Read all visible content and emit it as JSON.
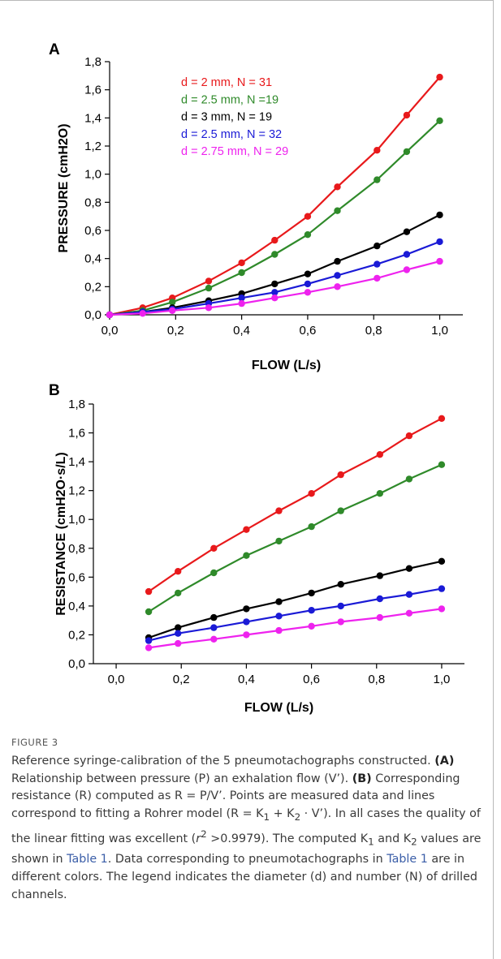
{
  "chart_data": [
    {
      "panel": "A",
      "type": "line",
      "xlabel": "FLOW (L/s)",
      "ylabel": "PRESSURE (cmH2O)",
      "xlim": [
        0.0,
        1.07
      ],
      "ylim": [
        0.0,
        1.8
      ],
      "xticks": [
        "0,0",
        "0,2",
        "0,4",
        "0,6",
        "0,8",
        "1,0"
      ],
      "yticks": [
        "0,0",
        "0,2",
        "0,4",
        "0,6",
        "0,8",
        "1,0",
        "1,2",
        "1,4",
        "1,6",
        "1,8"
      ],
      "x": [
        0.0,
        0.1,
        0.19,
        0.3,
        0.4,
        0.5,
        0.6,
        0.69,
        0.81,
        0.9,
        1.0
      ],
      "legend_position": "top-left",
      "series": [
        {
          "name": "d = 2 mm, N = 31",
          "color": "#e8191b",
          "values": [
            0.0,
            0.05,
            0.12,
            0.24,
            0.37,
            0.53,
            0.7,
            0.91,
            1.17,
            1.42,
            1.69
          ]
        },
        {
          "name": "d = 2.5 mm, N =19",
          "color": "#2f8a2a",
          "values": [
            0.0,
            0.03,
            0.09,
            0.19,
            0.3,
            0.43,
            0.57,
            0.74,
            0.96,
            1.16,
            1.38
          ]
        },
        {
          "name": "d = 3 mm, N = 19",
          "color": "#000000",
          "values": [
            0.0,
            0.02,
            0.05,
            0.1,
            0.15,
            0.22,
            0.29,
            0.38,
            0.49,
            0.59,
            0.71
          ]
        },
        {
          "name": "d = 2.5 mm, N = 32",
          "color": "#1a1ad6",
          "values": [
            0.0,
            0.02,
            0.04,
            0.08,
            0.12,
            0.16,
            0.22,
            0.28,
            0.36,
            0.43,
            0.52
          ]
        },
        {
          "name": "d = 2.75 mm, N = 29",
          "color": "#ee22ee",
          "values": [
            0.0,
            0.01,
            0.03,
            0.05,
            0.08,
            0.12,
            0.16,
            0.2,
            0.26,
            0.32,
            0.38
          ]
        }
      ]
    },
    {
      "panel": "B",
      "type": "line",
      "xlabel": "FLOW (L/s)",
      "ylabel": "RESISTANCE (cmH2O·s/L)",
      "xlim": [
        -0.07,
        1.07
      ],
      "ylim": [
        0.0,
        1.8
      ],
      "xticks": [
        "0,0",
        "0,2",
        "0,4",
        "0,6",
        "0,8",
        "1,0"
      ],
      "yticks": [
        "0,0",
        "0,2",
        "0,4",
        "0,6",
        "0,8",
        "1,0",
        "1,2",
        "1,4",
        "1,6",
        "1,8"
      ],
      "x": [
        0.1,
        0.19,
        0.3,
        0.4,
        0.5,
        0.6,
        0.69,
        0.81,
        0.9,
        1.0
      ],
      "series": [
        {
          "color": "#e8191b",
          "values": [
            0.5,
            0.64,
            0.8,
            0.93,
            1.06,
            1.18,
            1.31,
            1.45,
            1.58,
            1.7
          ]
        },
        {
          "color": "#2f8a2a",
          "values": [
            0.36,
            0.49,
            0.63,
            0.75,
            0.85,
            0.95,
            1.06,
            1.18,
            1.28,
            1.38
          ]
        },
        {
          "color": "#000000",
          "values": [
            0.18,
            0.25,
            0.32,
            0.38,
            0.43,
            0.49,
            0.55,
            0.61,
            0.66,
            0.71
          ]
        },
        {
          "color": "#1a1ad6",
          "values": [
            0.16,
            0.21,
            0.25,
            0.29,
            0.33,
            0.37,
            0.4,
            0.45,
            0.48,
            0.52
          ]
        },
        {
          "color": "#ee22ee",
          "values": [
            0.11,
            0.14,
            0.17,
            0.2,
            0.23,
            0.26,
            0.29,
            0.32,
            0.35,
            0.38
          ]
        }
      ]
    }
  ],
  "caption": {
    "figure_label": "FIGURE 3",
    "s1": "Reference syringe-calibration of the 5 pneumotachographs constructed. ",
    "a_label": "(A)",
    "s2": " Relationship between pressure (P) an exhalation flow (V’). ",
    "b_label": "(B)",
    "s3": " Corresponding resistance (R) computed as R = P/V’. Points are measured data and lines correspond to fitting a Rohrer model (R = K",
    "sub1": "1",
    "s4": " + K",
    "sub2": "2",
    "s5": " · V’). In all cases the quality of the linear fitting was excellent (",
    "r_var": "r",
    "r_exp": "2",
    "s6": " >0.9979). The computed K",
    "sub3": "1",
    "s7": " and K",
    "sub4": "2",
    "s8": " values are shown in ",
    "table_link1": "Table 1",
    "s9": ". Data corresponding to pneumotachographs in ",
    "table_link2": "Table 1",
    "s10": " are in different colors. The legend indicates the diameter (d) and number (N) of drilled channels."
  }
}
